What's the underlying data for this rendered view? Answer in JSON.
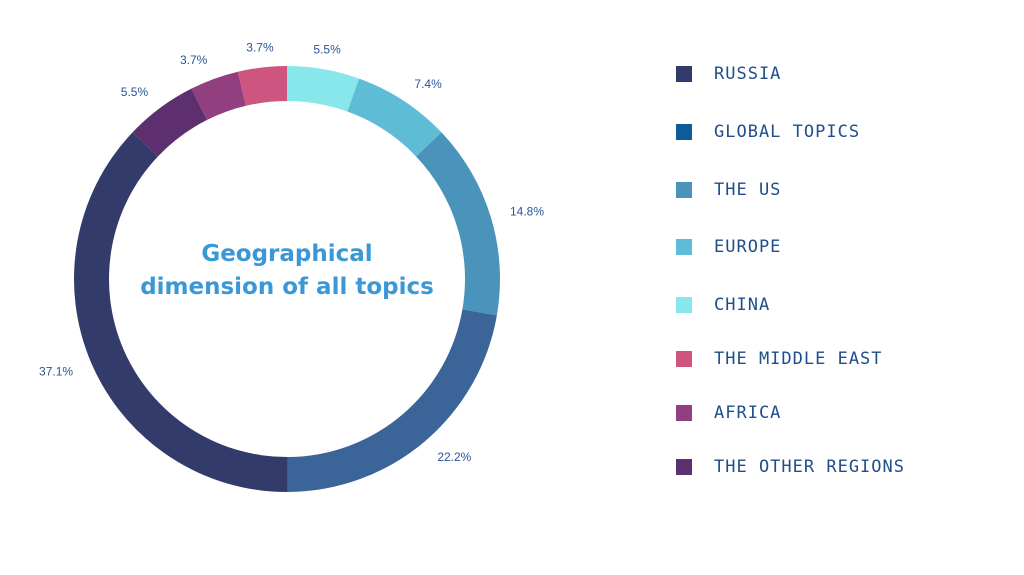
{
  "chart_data": {
    "type": "pie",
    "title": "Geographical dimension of all topics",
    "title_lines": [
      "Geographical",
      "dimension of all topics"
    ],
    "slices": [
      {
        "name": "CHINA",
        "value": 5.5,
        "label": "5.5%",
        "color": "#87e7ea"
      },
      {
        "name": "EUROPE",
        "value": 7.4,
        "label": "7.4%",
        "color": "#5ebcd6"
      },
      {
        "name": "THE US",
        "value": 14.8,
        "label": "14.8%",
        "color": "#4a93bb"
      },
      {
        "name": "GLOBAL TOPICS",
        "value": 22.2,
        "label": "22.2%",
        "color": "#3b6598"
      },
      {
        "name": "RUSSIA",
        "value": 37.1,
        "label": "37.1%",
        "color": "#333b6b"
      },
      {
        "name": "THE OTHER REGIONS",
        "value": 5.5,
        "label": "5.5%",
        "color": "#5e2f6e"
      },
      {
        "name": "AFRICA",
        "value": 3.7,
        "label": "3.7%",
        "color": "#923f7f"
      },
      {
        "name": "THE MIDDLE EAST",
        "value": 3.7,
        "label": "3.7%",
        "color": "#cf5581"
      }
    ],
    "legend": [
      {
        "label": "RUSSIA",
        "color": "#333b6b"
      },
      {
        "label": "GLOBAL TOPICS",
        "color": "#0f5a99"
      },
      {
        "label": "THE US",
        "color": "#4a93bb"
      },
      {
        "label": "EUROPE",
        "color": "#5ebcd6"
      },
      {
        "label": "CHINA",
        "color": "#87e7ea"
      },
      {
        "label": "THE MIDDLE EAST",
        "color": "#cf5581"
      },
      {
        "label": "AFRICA",
        "color": "#923f7f"
      },
      {
        "label": "THE OTHER REGIONS",
        "color": "#5e2f6e"
      }
    ],
    "legend_placement": "right",
    "style": "donut",
    "label_color": "#2a5596",
    "title_color": "#3a98d6"
  }
}
